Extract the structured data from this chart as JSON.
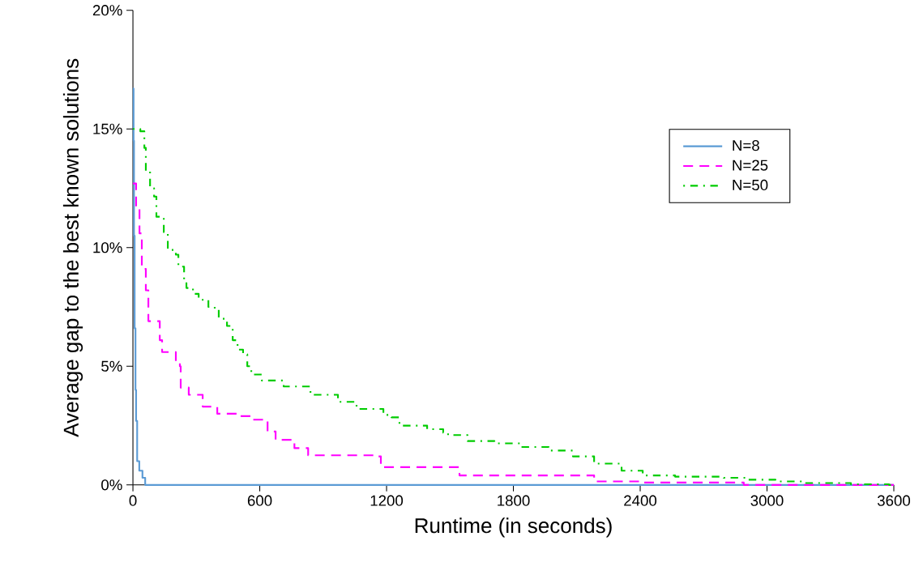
{
  "chart_data": {
    "type": "step",
    "xlabel": "Runtime (in seconds)",
    "ylabel": "Average gap to the best known solutions",
    "xlim": [
      0,
      3600
    ],
    "xticks": [
      0,
      600,
      1200,
      1800,
      2400,
      3000,
      3600
    ],
    "ylim": [
      0,
      20
    ],
    "yticks": [
      {
        "value": 0,
        "label": "0%"
      },
      {
        "value": 5,
        "label": "5%"
      },
      {
        "value": 10,
        "label": "10%"
      },
      {
        "value": 15,
        "label": "15%"
      },
      {
        "value": 20,
        "label": "20%"
      }
    ],
    "grid": false,
    "legend": "top right",
    "series": [
      {
        "name": "N=8",
        "color": "#5b9bd5",
        "line_style": "solid",
        "x": [
          0,
          3,
          5,
          8,
          12,
          15,
          20,
          30,
          45,
          58,
          3600
        ],
        "values": [
          16.7,
          14.5,
          10.5,
          6.6,
          4.0,
          2.7,
          1.0,
          0.6,
          0.3,
          0,
          0
        ]
      },
      {
        "name": "N=25",
        "color": "#ff00ff",
        "line_style": "dashed",
        "x": [
          0,
          15,
          31,
          42,
          61,
          73,
          100,
          127,
          138,
          203,
          222,
          226,
          264,
          330,
          399,
          495,
          560,
          637,
          675,
          764,
          829,
          1162,
          1173,
          1545,
          2182,
          2400,
          2890,
          3600
        ],
        "values": [
          12.7,
          11.7,
          10.6,
          9.1,
          8.2,
          6.9,
          6.9,
          6.1,
          5.6,
          5.15,
          5.0,
          4.1,
          3.8,
          3.3,
          3.0,
          2.9,
          2.75,
          2.25,
          1.9,
          1.55,
          1.25,
          1.2,
          0.75,
          0.4,
          0.15,
          0.1,
          0,
          0
        ]
      },
      {
        "name": "N=50",
        "color": "#00cc00",
        "line_style": "dashdot",
        "x": [
          0,
          35,
          54,
          61,
          81,
          100,
          111,
          146,
          165,
          203,
          215,
          242,
          253,
          284,
          311,
          357,
          387,
          406,
          445,
          472,
          495,
          521,
          541,
          560,
          610,
          713,
          840,
          970,
          1058,
          1185,
          1223,
          1261,
          1392,
          1468,
          1491,
          1583,
          1710,
          1837,
          1967,
          2082,
          2182,
          2312,
          2412,
          2565,
          2795,
          2910,
          3040,
          3167,
          3397,
          3577,
          3600
        ],
        "values": [
          15.0,
          14.9,
          14.2,
          13.2,
          12.5,
          12.15,
          11.3,
          10.65,
          9.9,
          9.7,
          9.2,
          8.6,
          8.3,
          8.05,
          7.8,
          7.5,
          7.4,
          7.0,
          6.7,
          6.1,
          5.7,
          5.5,
          5.0,
          4.65,
          4.4,
          4.15,
          3.8,
          3.5,
          3.2,
          2.95,
          2.85,
          2.5,
          2.35,
          2.2,
          2.1,
          1.85,
          1.75,
          1.6,
          1.45,
          1.2,
          0.9,
          0.6,
          0.4,
          0.35,
          0.3,
          0.22,
          0.15,
          0.08,
          0.03,
          0,
          0
        ]
      }
    ]
  }
}
